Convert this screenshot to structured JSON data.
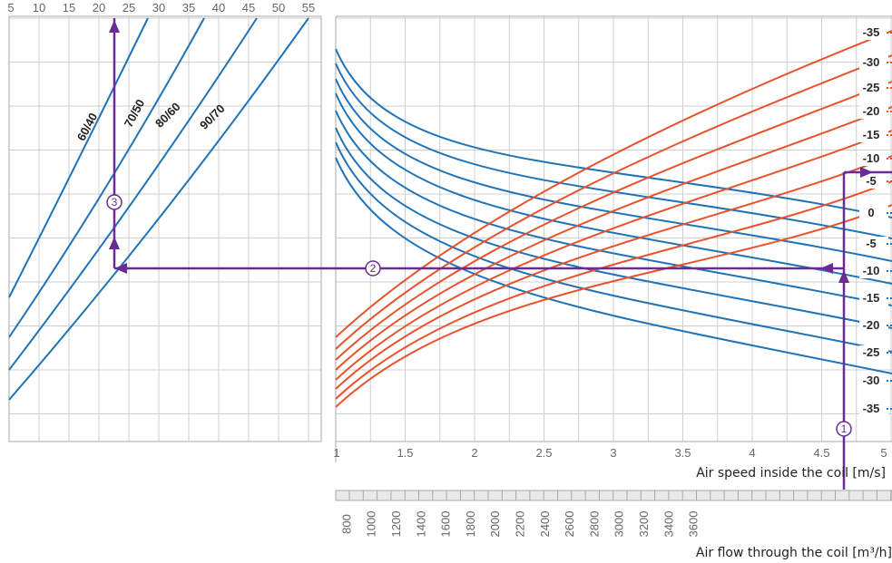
{
  "colors": {
    "blue": "#1f73b7",
    "red": "#e8522c",
    "purple": "#6a2b94",
    "grid": "#cfcfcf",
    "border": "#a8a8a8"
  },
  "chart_data": [
    {
      "type": "line",
      "panel": "water-temperature",
      "x_ticks": [
        "5",
        "10",
        "15",
        "20",
        "25",
        "30",
        "35",
        "40",
        "45",
        "50",
        "55"
      ],
      "xlim": [
        5,
        55
      ],
      "series": [
        {
          "name": "60/40",
          "label_rot": -62
        },
        {
          "name": "70/50",
          "label_rot": -62
        },
        {
          "name": "80/60",
          "label_rot": -45
        },
        {
          "name": "90/70",
          "label_rot": -45
        }
      ],
      "markers": [
        "③"
      ]
    },
    {
      "type": "line",
      "panel": "coil-performance",
      "xlabel": "Air speed inside the coil [m/s]",
      "xlim": [
        1,
        5
      ],
      "x_ticks": [
        "1",
        "1.5",
        "2",
        "2.5",
        "3",
        "3.5",
        "4",
        "4.5",
        "5"
      ],
      "right_ticks": [
        "-35",
        "-30",
        "-25",
        "-20",
        "-15",
        "-10",
        "-5",
        "0",
        "-5",
        "-10",
        "-15",
        "-20",
        "-25",
        "-30",
        "-35"
      ],
      "series_groups": [
        {
          "color": "blue",
          "count": 8
        },
        {
          "color": "red",
          "count": 8
        }
      ],
      "markers": [
        "①",
        "②"
      ],
      "selected_air_speed": 4.68
    },
    {
      "type": "axis",
      "panel": "air-flow",
      "xlabel": "Air flow through the coil [m³/h]",
      "ticks": [
        "800",
        "1000",
        "1200",
        "1400",
        "1600",
        "1800",
        "2000",
        "2200",
        "2400",
        "2600",
        "2800",
        "3000",
        "3200",
        "3400",
        "3600"
      ]
    }
  ]
}
